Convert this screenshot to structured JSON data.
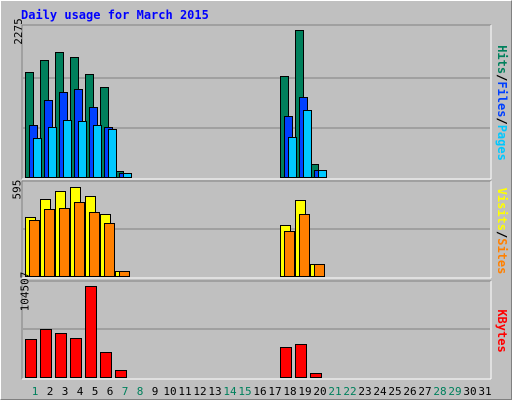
{
  "title": "Daily usage for March 2015",
  "colors": {
    "hits": "#00805c",
    "files": "#0040ff",
    "pages": "#00c8ff",
    "visits": "#ffff00",
    "sites": "#ff8000",
    "kbytes": "#ff0000",
    "weekend_label": "#00805c",
    "weekday_label": "#000000",
    "title": "#0000ff"
  },
  "legend": {
    "top": {
      "hits": "Hits",
      "sep1": "/",
      "files": "Files",
      "sep2": "/",
      "pages": "Pages"
    },
    "middle": {
      "visits": "Visits",
      "sep": "/",
      "sites": "Sites"
    },
    "bottom": {
      "kbytes": "KBytes"
    }
  },
  "chart_data": {
    "type": "bar",
    "title": "Daily usage for March 2015",
    "categories": [
      "1",
      "2",
      "3",
      "4",
      "5",
      "6",
      "7",
      "8",
      "9",
      "10",
      "11",
      "12",
      "13",
      "14",
      "15",
      "16",
      "17",
      "18",
      "19",
      "20",
      "21",
      "22",
      "23",
      "24",
      "25",
      "26",
      "27",
      "28",
      "29",
      "30",
      "31"
    ],
    "weekend_days": [
      1,
      7,
      8,
      14,
      15,
      21,
      22,
      28,
      29
    ],
    "panels": [
      {
        "name": "hits-files-pages",
        "max_label": "2275",
        "ylim": [
          0,
          2275
        ],
        "series": [
          {
            "name": "Hits",
            "values": [
              1620,
              1810,
              1940,
              1860,
              1600,
              1390,
              90,
              0,
              0,
              0,
              0,
              0,
              0,
              0,
              0,
              0,
              0,
              1570,
              2275,
              200,
              0,
              0,
              0,
              0,
              0,
              0,
              0,
              0,
              0,
              0,
              0
            ]
          },
          {
            "name": "Files",
            "values": [
              800,
              1190,
              1310,
              1360,
              1090,
              770,
              60,
              0,
              0,
              0,
              0,
              0,
              0,
              0,
              0,
              0,
              0,
              950,
              1240,
              110,
              0,
              0,
              0,
              0,
              0,
              0,
              0,
              0,
              0,
              0,
              0
            ]
          },
          {
            "name": "Pages",
            "values": [
              600,
              780,
              880,
              870,
              800,
              750,
              60,
              0,
              0,
              0,
              0,
              0,
              0,
              0,
              0,
              0,
              0,
              620,
              1030,
              110,
              0,
              0,
              0,
              0,
              0,
              0,
              0,
              0,
              0,
              0,
              0
            ]
          }
        ]
      },
      {
        "name": "visits-sites",
        "max_label": "595",
        "ylim": [
          0,
          595
        ],
        "series": [
          {
            "name": "Visits",
            "values": [
              390,
              510,
              560,
              590,
              530,
              410,
              30,
              0,
              0,
              0,
              0,
              0,
              0,
              0,
              0,
              0,
              0,
              340,
              500,
              80,
              0,
              0,
              0,
              0,
              0,
              0,
              0,
              0,
              0,
              0,
              0
            ]
          },
          {
            "name": "Sites",
            "values": [
              370,
              440,
              450,
              490,
              420,
              350,
              30,
              0,
              0,
              0,
              0,
              0,
              0,
              0,
              0,
              0,
              0,
              300,
              410,
              80,
              0,
              0,
              0,
              0,
              0,
              0,
              0,
              0,
              0,
              0,
              0
            ]
          }
        ]
      },
      {
        "name": "kbytes",
        "max_label": "104507",
        "ylim": [
          0,
          104507
        ],
        "series": [
          {
            "name": "KBytes",
            "values": [
              44000,
              55000,
              51000,
              45000,
              104507,
              29000,
              8500,
              0,
              0,
              0,
              0,
              0,
              0,
              0,
              0,
              0,
              0,
              34000,
              38000,
              5000,
              0,
              0,
              0,
              0,
              0,
              0,
              0,
              0,
              0,
              0,
              0
            ]
          }
        ]
      }
    ]
  }
}
